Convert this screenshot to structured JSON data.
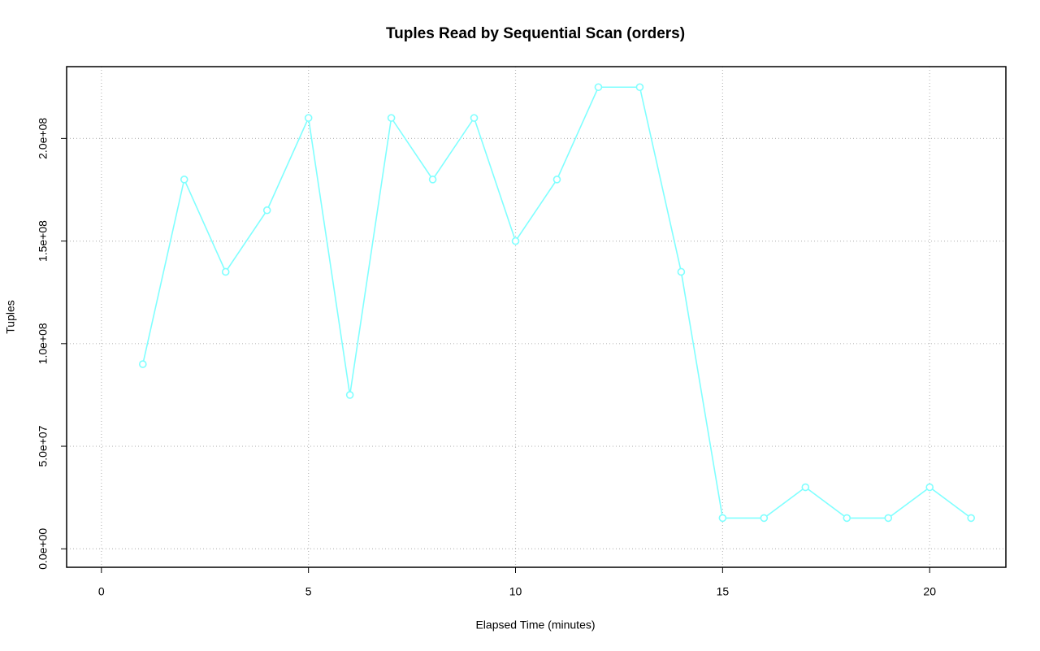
{
  "chart_data": {
    "type": "line",
    "title": "Tuples Read by Sequential Scan (orders)",
    "xlabel": "Elapsed Time (minutes)",
    "ylabel": "Tuples",
    "x": [
      1,
      2,
      3,
      4,
      5,
      6,
      7,
      8,
      9,
      10,
      11,
      12,
      13,
      14,
      15,
      16,
      17,
      18,
      19,
      20,
      21
    ],
    "series": [
      {
        "color": "#80ffff",
        "values": [
          90000000,
          180000000,
          135000000,
          165000000,
          210000000,
          75000000,
          210000000,
          180000000,
          210000000,
          150000000,
          180000000,
          225000000,
          225000000,
          135000000,
          15000000,
          15000000,
          30000000,
          15000000,
          15000000,
          30000000,
          15000000
        ]
      }
    ],
    "xlim": [
      -0.84,
      21.84
    ],
    "ylim": [
      -9000000,
      235000000
    ],
    "xticks": [
      0,
      5,
      10,
      15,
      20
    ],
    "yticks": [
      {
        "value": 0,
        "label": "0.0e+00"
      },
      {
        "value": 50000000,
        "label": "5.0e+07"
      },
      {
        "value": 100000000,
        "label": "1.0e+08"
      },
      {
        "value": 150000000,
        "label": "1.5e+08"
      },
      {
        "value": 200000000,
        "label": "2.0e+08"
      }
    ],
    "grid": true
  }
}
